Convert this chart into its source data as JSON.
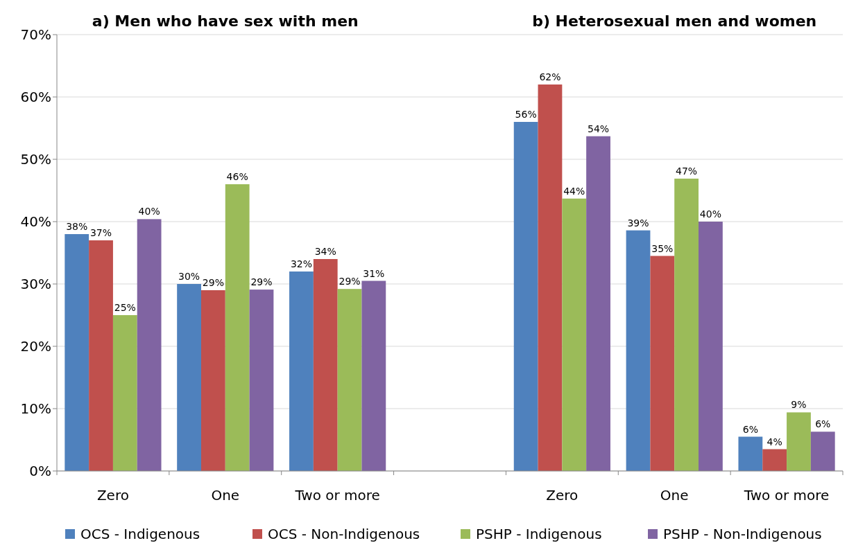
{
  "chart_data": {
    "type": "bar",
    "title": "a) Men who have sex with men",
    "annotations": [
      "b) Heterosexual men and women"
    ],
    "categories": [
      "Zero",
      "One",
      "Two or more",
      null,
      "Zero",
      "One",
      "Two or more"
    ],
    "series": [
      {
        "name": "OCS - Indigenous",
        "color": "#4f81bd",
        "values": [
          38,
          30,
          32,
          null,
          56,
          38.6,
          5.5
        ],
        "value_labels": [
          "38%",
          "30%",
          "32%",
          null,
          "56%",
          "39%",
          "6%"
        ]
      },
      {
        "name": "OCS - Non-Indigenous",
        "color": "#c0504d",
        "values": [
          37,
          29,
          34,
          null,
          62,
          34.5,
          3.5
        ],
        "value_labels": [
          "37%",
          "29%",
          "34%",
          null,
          "62%",
          "35%",
          "4%"
        ]
      },
      {
        "name": "PSHP - Indigenous",
        "color": "#9bbb59",
        "values": [
          25,
          46,
          29.2,
          null,
          43.7,
          46.9,
          9.4
        ],
        "value_labels": [
          "25%",
          "46%",
          "29%",
          null,
          "44%",
          "47%",
          "9%"
        ]
      },
      {
        "name": "PSHP - Non-Indigenous",
        "color": "#8064a2",
        "values": [
          40.4,
          29.1,
          30.5,
          null,
          53.7,
          40,
          6.3
        ],
        "value_labels": [
          "40%",
          "29%",
          "31%",
          null,
          "54%",
          "40%",
          "6%"
        ]
      }
    ],
    "ylim": [
      0,
      70
    ],
    "yticks": [
      {
        "value": 0,
        "label": "0%"
      },
      {
        "value": 10,
        "label": "10%"
      },
      {
        "value": 20,
        "label": "20%"
      },
      {
        "value": 30,
        "label": "30%"
      },
      {
        "value": 40,
        "label": "40%"
      },
      {
        "value": 50,
        "label": "50%"
      },
      {
        "value": 60,
        "label": "60%"
      },
      {
        "value": 70,
        "label": "70%"
      }
    ],
    "grid": "y",
    "legend": "bottom"
  }
}
